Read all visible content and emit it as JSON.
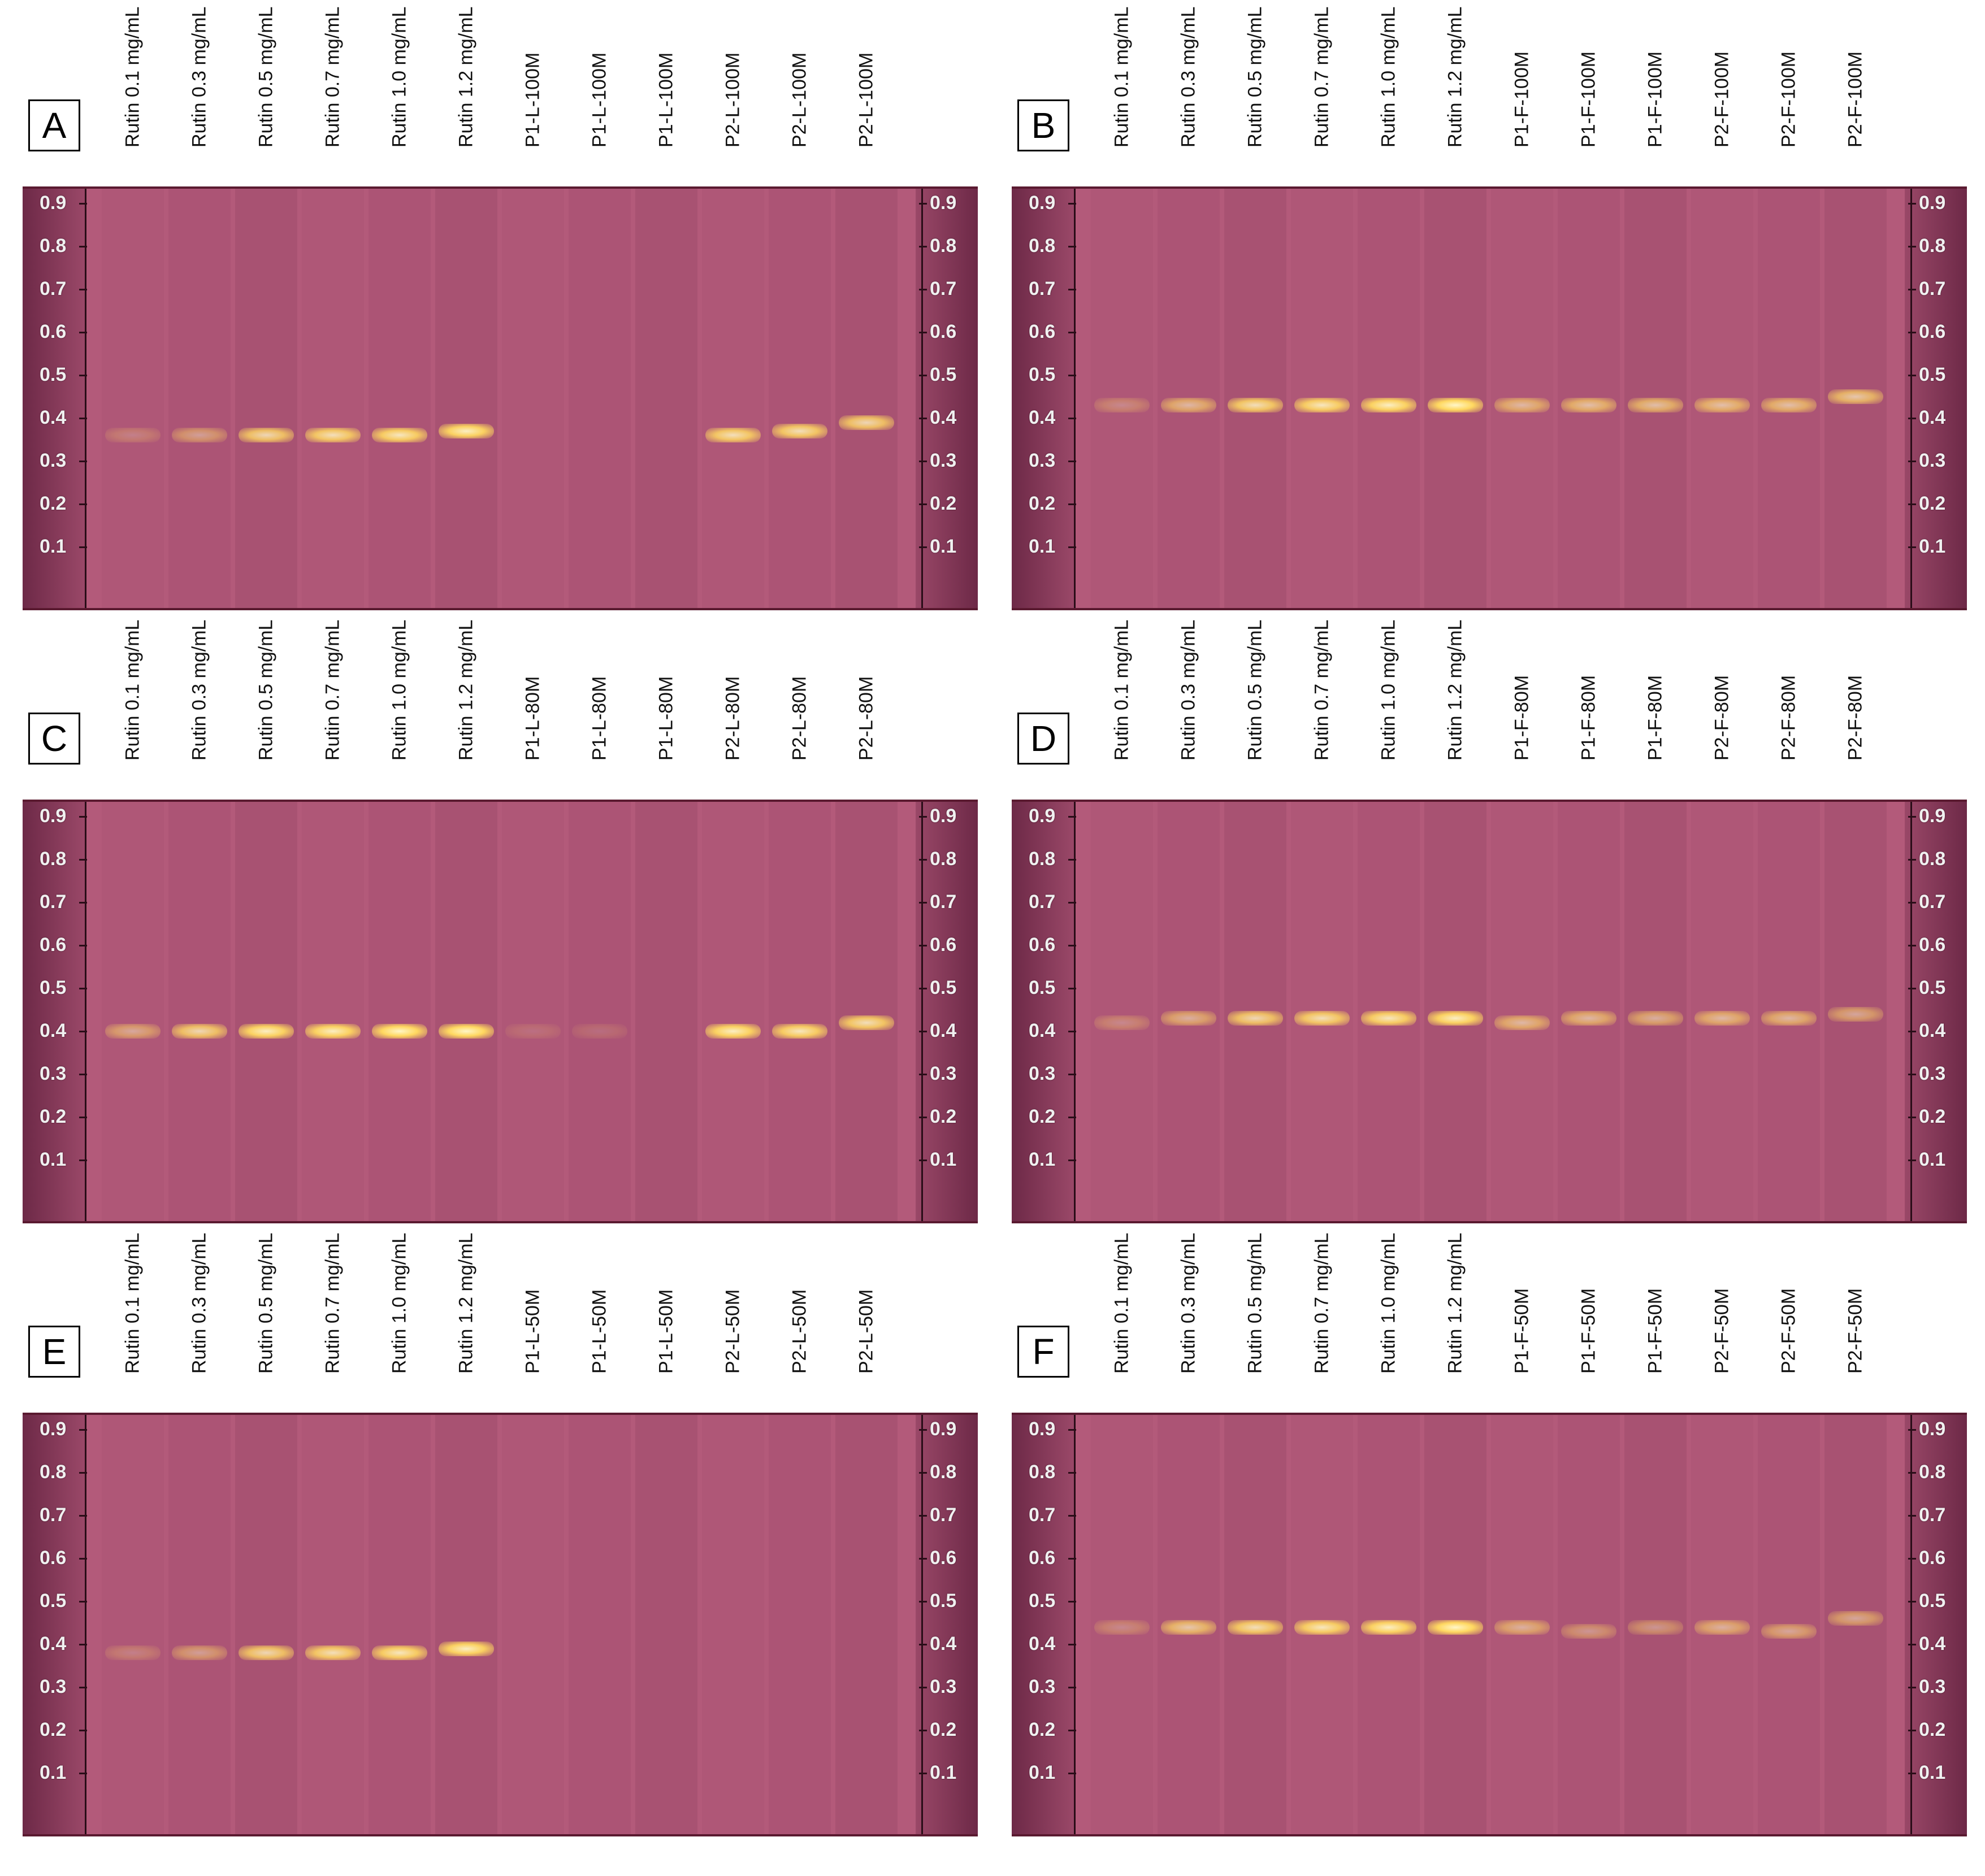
{
  "colors": {
    "plate_base": "#b35a7a",
    "plate_dark": "#6d2947",
    "band_core": "#fff6c8",
    "band_glow": "#ffd860"
  },
  "rf_scale": [
    "0.9",
    "0.8",
    "0.7",
    "0.6",
    "0.5",
    "0.4",
    "0.3",
    "0.2",
    "0.1"
  ],
  "panels": [
    {
      "letter": "A",
      "lanes": [
        {
          "label": "Rutin 0.1 mg/mL",
          "rf": 0.36,
          "intensity": 0.25
        },
        {
          "label": "Rutin 0.3 mg/mL",
          "rf": 0.36,
          "intensity": 0.45
        },
        {
          "label": "Rutin 0.5 mg/mL",
          "rf": 0.36,
          "intensity": 0.8
        },
        {
          "label": "Rutin 0.7 mg/mL",
          "rf": 0.36,
          "intensity": 0.85
        },
        {
          "label": "Rutin 1.0 mg/mL",
          "rf": 0.36,
          "intensity": 0.9
        },
        {
          "label": "Rutin 1.2 mg/mL",
          "rf": 0.37,
          "intensity": 0.95
        },
        {
          "label": "P1-L-100M",
          "rf": null,
          "intensity": 0
        },
        {
          "label": "P1-L-100M",
          "rf": null,
          "intensity": 0
        },
        {
          "label": "P1-L-100M",
          "rf": null,
          "intensity": 0
        },
        {
          "label": "P2-L-100M",
          "rf": 0.36,
          "intensity": 0.85
        },
        {
          "label": "P2-L-100M",
          "rf": 0.37,
          "intensity": 0.85
        },
        {
          "label": "P2-L-100M",
          "rf": 0.39,
          "intensity": 0.8
        }
      ]
    },
    {
      "letter": "B",
      "lanes": [
        {
          "label": "Rutin 0.1 mg/mL",
          "rf": 0.43,
          "intensity": 0.3
        },
        {
          "label": "Rutin 0.3 mg/mL",
          "rf": 0.43,
          "intensity": 0.6
        },
        {
          "label": "Rutin 0.5 mg/mL",
          "rf": 0.43,
          "intensity": 0.85
        },
        {
          "label": "Rutin 0.7 mg/mL",
          "rf": 0.43,
          "intensity": 0.9
        },
        {
          "label": "Rutin 1.0 mg/mL",
          "rf": 0.43,
          "intensity": 0.95
        },
        {
          "label": "Rutin 1.2 mg/mL",
          "rf": 0.43,
          "intensity": 1.0
        },
        {
          "label": "P1-F-100M",
          "rf": 0.43,
          "intensity": 0.6
        },
        {
          "label": "P1-F-100M",
          "rf": 0.43,
          "intensity": 0.65
        },
        {
          "label": "P1-F-100M",
          "rf": 0.43,
          "intensity": 0.65
        },
        {
          "label": "P2-F-100M",
          "rf": 0.43,
          "intensity": 0.65
        },
        {
          "label": "P2-F-100M",
          "rf": 0.43,
          "intensity": 0.65
        },
        {
          "label": "P2-F-100M",
          "rf": 0.45,
          "intensity": 0.7
        }
      ]
    },
    {
      "letter": "C",
      "lanes": [
        {
          "label": "Rutin 0.1 mg/mL",
          "rf": 0.4,
          "intensity": 0.5
        },
        {
          "label": "Rutin 0.3 mg/mL",
          "rf": 0.4,
          "intensity": 0.8
        },
        {
          "label": "Rutin 0.5 mg/mL",
          "rf": 0.4,
          "intensity": 0.95
        },
        {
          "label": "Rutin 0.7 mg/mL",
          "rf": 0.4,
          "intensity": 0.95
        },
        {
          "label": "Rutin 1.0 mg/mL",
          "rf": 0.4,
          "intensity": 1.0
        },
        {
          "label": "Rutin 1.2 mg/mL",
          "rf": 0.4,
          "intensity": 1.0
        },
        {
          "label": "P1-L-80M",
          "rf": 0.4,
          "intensity": 0.15
        },
        {
          "label": "P1-L-80M",
          "rf": 0.4,
          "intensity": 0.15
        },
        {
          "label": "P1-L-80M",
          "rf": null,
          "intensity": 0
        },
        {
          "label": "P2-L-80M",
          "rf": 0.4,
          "intensity": 0.95
        },
        {
          "label": "P2-L-80M",
          "rf": 0.4,
          "intensity": 0.9
        },
        {
          "label": "P2-L-80M",
          "rf": 0.42,
          "intensity": 0.85
        }
      ]
    },
    {
      "letter": "D",
      "lanes": [
        {
          "label": "Rutin 0.1 mg/mL",
          "rf": 0.42,
          "intensity": 0.3
        },
        {
          "label": "Rutin 0.3 mg/mL",
          "rf": 0.43,
          "intensity": 0.55
        },
        {
          "label": "Rutin 0.5 mg/mL",
          "rf": 0.43,
          "intensity": 0.8
        },
        {
          "label": "Rutin 0.7 mg/mL",
          "rf": 0.43,
          "intensity": 0.85
        },
        {
          "label": "Rutin 1.0 mg/mL",
          "rf": 0.43,
          "intensity": 0.9
        },
        {
          "label": "Rutin 1.2 mg/mL",
          "rf": 0.43,
          "intensity": 0.95
        },
        {
          "label": "P1-F-80M",
          "rf": 0.42,
          "intensity": 0.6
        },
        {
          "label": "P1-F-80M",
          "rf": 0.43,
          "intensity": 0.6
        },
        {
          "label": "P1-F-80M",
          "rf": 0.43,
          "intensity": 0.55
        },
        {
          "label": "P2-F-80M",
          "rf": 0.43,
          "intensity": 0.6
        },
        {
          "label": "P2-F-80M",
          "rf": 0.43,
          "intensity": 0.6
        },
        {
          "label": "P2-F-80M",
          "rf": 0.44,
          "intensity": 0.5
        }
      ]
    },
    {
      "letter": "E",
      "lanes": [
        {
          "label": "Rutin 0.1 mg/mL",
          "rf": 0.38,
          "intensity": 0.25
        },
        {
          "label": "Rutin 0.3 mg/mL",
          "rf": 0.38,
          "intensity": 0.45
        },
        {
          "label": "Rutin 0.5 mg/mL",
          "rf": 0.38,
          "intensity": 0.8
        },
        {
          "label": "Rutin 0.7 mg/mL",
          "rf": 0.38,
          "intensity": 0.85
        },
        {
          "label": "Rutin 1.0 mg/mL",
          "rf": 0.38,
          "intensity": 0.9
        },
        {
          "label": "Rutin 1.2 mg/mL",
          "rf": 0.39,
          "intensity": 0.95
        },
        {
          "label": "P1-L-50M",
          "rf": null,
          "intensity": 0
        },
        {
          "label": "P1-L-50M",
          "rf": null,
          "intensity": 0
        },
        {
          "label": "P1-L-50M",
          "rf": null,
          "intensity": 0
        },
        {
          "label": "P2-L-50M",
          "rf": null,
          "intensity": 0
        },
        {
          "label": "P2-L-50M",
          "rf": null,
          "intensity": 0
        },
        {
          "label": "P2-L-50M",
          "rf": null,
          "intensity": 0
        }
      ]
    },
    {
      "letter": "F",
      "lanes": [
        {
          "label": "Rutin 0.1 mg/mL",
          "rf": 0.44,
          "intensity": 0.3
        },
        {
          "label": "Rutin 0.3 mg/mL",
          "rf": 0.44,
          "intensity": 0.7
        },
        {
          "label": "Rutin 0.5 mg/mL",
          "rf": 0.44,
          "intensity": 0.85
        },
        {
          "label": "Rutin 0.7 mg/mL",
          "rf": 0.44,
          "intensity": 0.9
        },
        {
          "label": "Rutin 1.0 mg/mL",
          "rf": 0.44,
          "intensity": 0.95
        },
        {
          "label": "Rutin 1.2 mg/mL",
          "rf": 0.44,
          "intensity": 1.0
        },
        {
          "label": "P1-F-50M",
          "rf": 0.44,
          "intensity": 0.55
        },
        {
          "label": "P1-F-50M",
          "rf": 0.43,
          "intensity": 0.4
        },
        {
          "label": "P1-F-50M",
          "rf": 0.44,
          "intensity": 0.4
        },
        {
          "label": "P2-F-50M",
          "rf": 0.44,
          "intensity": 0.55
        },
        {
          "label": "P2-F-50M",
          "rf": 0.43,
          "intensity": 0.5
        },
        {
          "label": "P2-F-50M",
          "rf": 0.46,
          "intensity": 0.5
        }
      ]
    }
  ]
}
